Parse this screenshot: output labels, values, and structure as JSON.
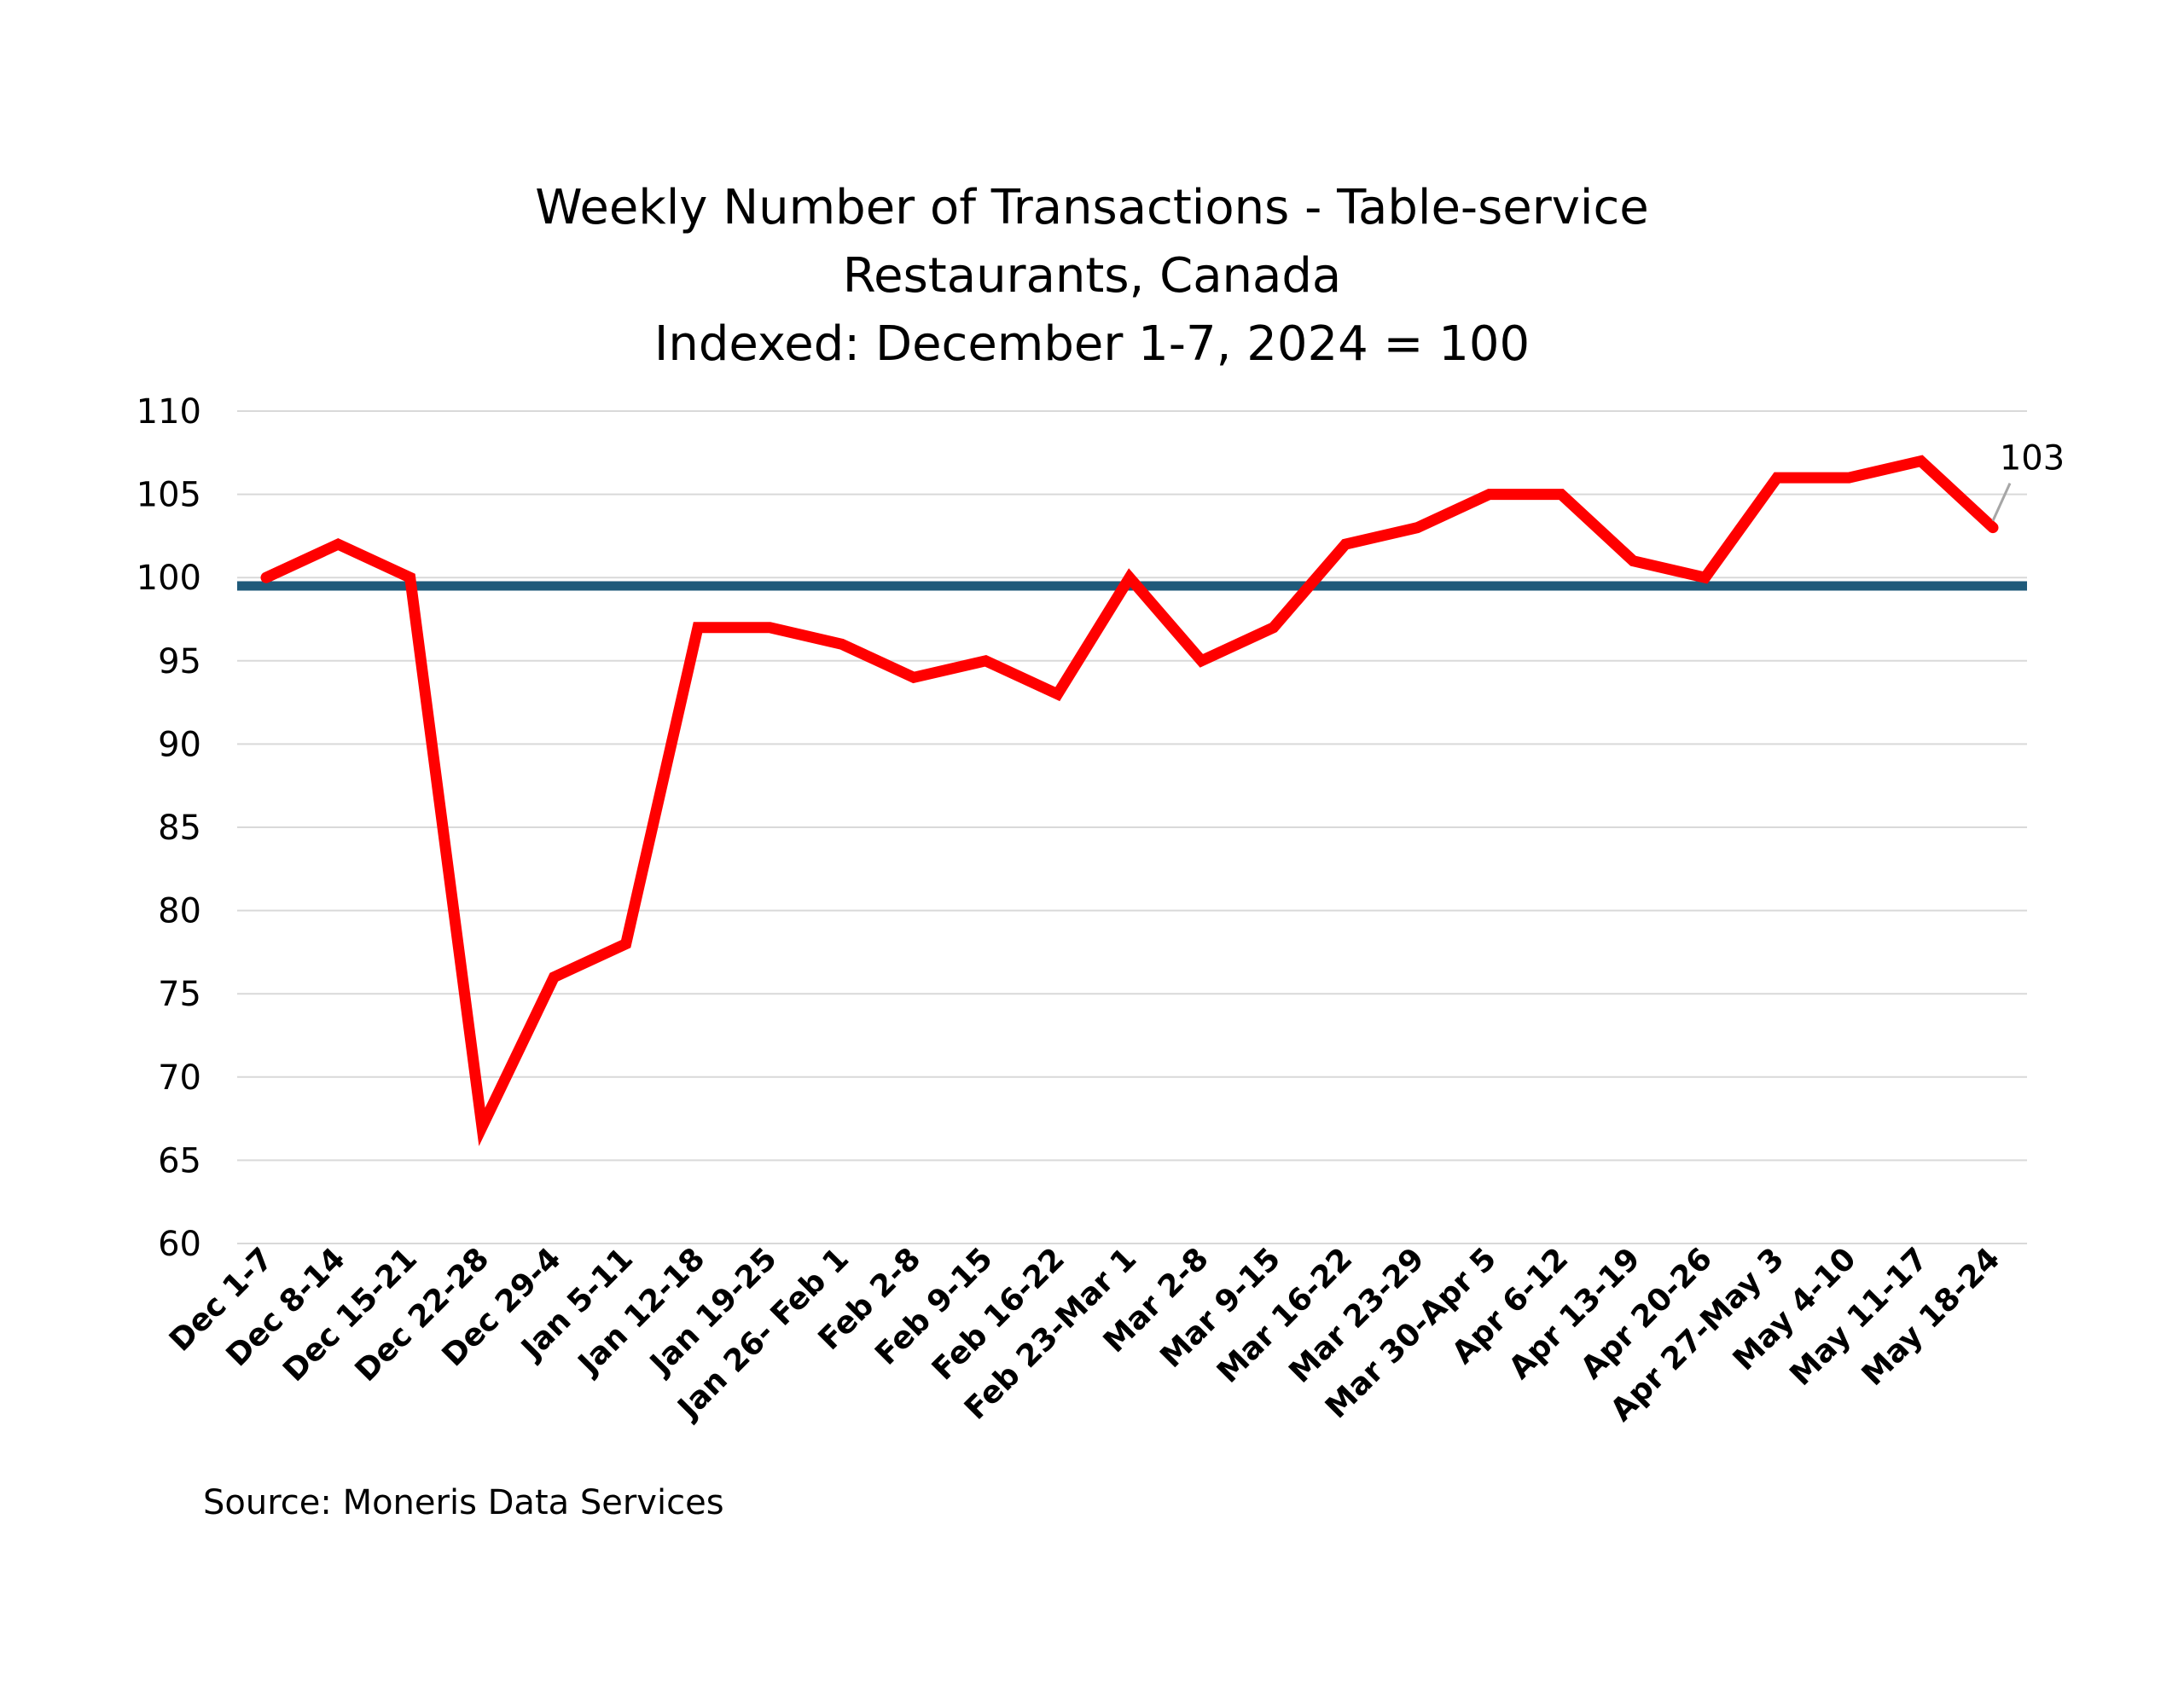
{
  "chart_data": {
    "type": "line",
    "title_lines": [
      "Weekly Number of Transactions - Table-service",
      "Restaurants, Canada",
      "Indexed: December 1-7, 2024 = 100"
    ],
    "categories": [
      "Dec 1-7",
      "Dec 8-14",
      "Dec 15-21",
      "Dec 22-28",
      "Dec 29-4",
      "Jan 5-11",
      "Jan 12-18",
      "Jan 19-25",
      "Jan 26- Feb 1",
      "Feb 2-8",
      "Feb 9-15",
      "Feb 16-22",
      "Feb 23-Mar 1",
      "Mar 2-8",
      "Mar 9-15",
      "Mar 16-22",
      "Mar 23-29",
      "Mar 30-Apr 5",
      "Apr 6-12",
      "Apr 13-19",
      "Apr 20-26",
      "Apr 27-May 3",
      "May 4-10",
      "May 11-17",
      "May 18-24"
    ],
    "series": [
      {
        "values": [
          100,
          102,
          100,
          67,
          76,
          78,
          97,
          97,
          96,
          94,
          95,
          93,
          100,
          95,
          97,
          102,
          103,
          105,
          105,
          101,
          100,
          106,
          106,
          107,
          103
        ],
        "color": "#ff0000"
      }
    ],
    "reference_line": {
      "value": 99.5,
      "color": "#1f5a7a"
    },
    "y_ticks": [
      "60",
      "65",
      "70",
      "75",
      "80",
      "85",
      "90",
      "95",
      "100",
      "105",
      "110"
    ],
    "ylim": [
      60,
      110
    ],
    "grid": true,
    "annotation": {
      "text": "103",
      "category": "May 18-24"
    },
    "source": "Source: Moneris Data Services"
  }
}
